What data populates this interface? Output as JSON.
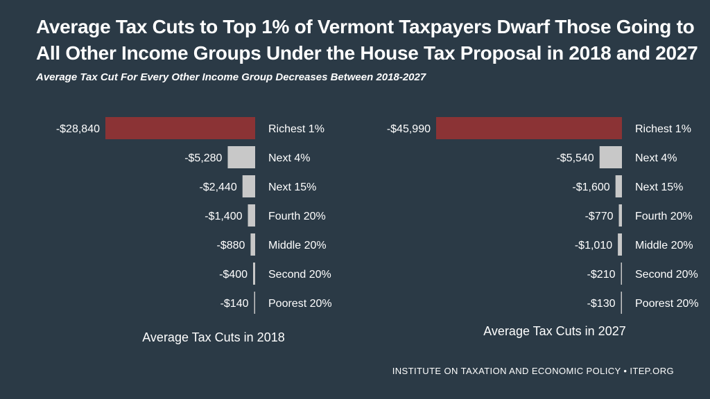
{
  "title": "Average Tax Cuts to Top 1% of Vermont Taxpayers Dwarf Those Going to All Other Income Groups Under the House Tax Proposal in 2018 and 2027",
  "subtitle": "Average Tax Cut For Every Other Income Group Decreases Between 2018-2027",
  "source": "INSTITUTE ON TAXATION AND ECONOMIC POLICY • ITEP.ORG",
  "colors": {
    "background": "#2b3a46",
    "top_bar": "#8b3335",
    "other_bar": "#c8c8c8",
    "text": "#ffffff"
  },
  "chart_data": [
    {
      "type": "bar",
      "orientation": "horizontal",
      "title": "Average Tax Cuts in 2018",
      "categories": [
        "Richest 1%",
        "Next 4%",
        "Next 15%",
        "Fourth 20%",
        "Middle 20%",
        "Second 20%",
        "Poorest 20%"
      ],
      "values": [
        -28840,
        -5280,
        -2440,
        -1400,
        -880,
        -400,
        -140
      ],
      "value_labels": [
        "-$28,840",
        "-$5,280",
        "-$2,440",
        "-$1,400",
        "-$880",
        "-$400",
        "-$140"
      ]
    },
    {
      "type": "bar",
      "orientation": "horizontal",
      "title": "Average Tax Cuts in 2027",
      "categories": [
        "Richest 1%",
        "Next 4%",
        "Next 15%",
        "Fourth 20%",
        "Middle 20%",
        "Second 20%",
        "Poorest 20%"
      ],
      "values": [
        -45990,
        -5540,
        -1600,
        -770,
        -1010,
        -210,
        -130
      ],
      "value_labels": [
        "-$45,990",
        "-$5,540",
        "-$1,600",
        "-$770",
        "-$1,010",
        "-$210",
        "-$130"
      ]
    }
  ]
}
